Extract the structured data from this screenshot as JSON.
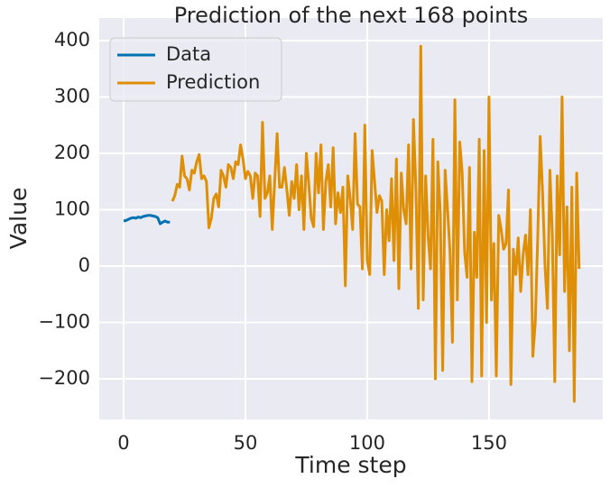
{
  "chart_data": {
    "type": "line",
    "title": "Prediction of the next 168 points",
    "xlabel": "Time step",
    "ylabel": "Value",
    "xlim": [
      -10,
      196.7
    ],
    "ylim": [
      -272,
      440
    ],
    "xticks": [
      0,
      50,
      100,
      150
    ],
    "yticks": [
      {
        "value": -200,
        "label": "−200"
      },
      {
        "value": -100,
        "label": "−100"
      },
      0,
      100,
      200,
      300,
      400
    ],
    "grid": true,
    "legend": "upper left",
    "series": [
      {
        "name": "Data",
        "color": "#0173b2",
        "x": [
          0,
          1,
          2,
          3,
          4,
          5,
          6,
          7,
          8,
          9,
          10,
          11,
          12,
          13,
          14,
          15,
          16,
          17,
          18,
          19
        ],
        "values": [
          80,
          81,
          83,
          85,
          86,
          85,
          87,
          86,
          88,
          89,
          90,
          90,
          89,
          88,
          86,
          75,
          78,
          80,
          78,
          78
        ]
      },
      {
        "name": "Prediction",
        "color": "#de8f05",
        "x": [
          20,
          21,
          22,
          23,
          24,
          25,
          26,
          27,
          28,
          29,
          30,
          31,
          32,
          33,
          34,
          35,
          36,
          37,
          38,
          39,
          40,
          41,
          42,
          43,
          44,
          45,
          46,
          47,
          48,
          49,
          50,
          51,
          52,
          53,
          54,
          55,
          56,
          57,
          58,
          59,
          60,
          61,
          62,
          63,
          64,
          65,
          66,
          67,
          68,
          69,
          70,
          71,
          72,
          73,
          74,
          75,
          76,
          77,
          78,
          79,
          80,
          81,
          82,
          83,
          84,
          85,
          86,
          87,
          88,
          89,
          90,
          91,
          92,
          93,
          94,
          95,
          96,
          97,
          98,
          99,
          100,
          101,
          102,
          103,
          104,
          105,
          106,
          107,
          108,
          109,
          110,
          111,
          112,
          113,
          114,
          115,
          116,
          117,
          118,
          119,
          120,
          121,
          122,
          123,
          124,
          125,
          126,
          127,
          128,
          129,
          130,
          131,
          132,
          133,
          134,
          135,
          136,
          137,
          138,
          139,
          140,
          141,
          142,
          143,
          144,
          145,
          146,
          147,
          148,
          149,
          150,
          151,
          152,
          153,
          154,
          155,
          156,
          157,
          158,
          159,
          160,
          161,
          162,
          163,
          164,
          165,
          166,
          167,
          168,
          169,
          170,
          171,
          172,
          173,
          174,
          175,
          176,
          177,
          178,
          179,
          180,
          181,
          182,
          183,
          184,
          185,
          186,
          187
        ],
        "values": [
          115,
          125,
          145,
          140,
          195,
          160,
          155,
          135,
          170,
          165,
          185,
          198,
          155,
          160,
          150,
          68,
          85,
          120,
          128,
          105,
          170,
          160,
          140,
          180,
          175,
          155,
          185,
          180,
          215,
          190,
          155,
          168,
          160,
          120,
          165,
          160,
          88,
          255,
          120,
          130,
          160,
          65,
          150,
          235,
          140,
          140,
          175,
          135,
          90,
          150,
          120,
          180,
          100,
          160,
          65,
          200,
          145,
          85,
          70,
          200,
          130,
          215,
          65,
          150,
          180,
          105,
          210,
          75,
          130,
          95,
          140,
          -35,
          160,
          120,
          65,
          235,
          110,
          105,
          -5,
          250,
          10,
          -15,
          205,
          150,
          95,
          125,
          115,
          -15,
          100,
          45,
          155,
          10,
          190,
          -40,
          165,
          100,
          75,
          215,
          -5,
          260,
          135,
          -75,
          390,
          -60,
          160,
          55,
          -5,
          225,
          -200,
          185,
          95,
          -185,
          170,
          100,
          25,
          -135,
          295,
          -60,
          220,
          165,
          25,
          -20,
          175,
          -205,
          60,
          -20,
          225,
          -195,
          205,
          -100,
          300,
          -60,
          40,
          -195,
          90,
          65,
          30,
          40,
          135,
          -210,
          30,
          -15,
          50,
          -45,
          20,
          55,
          -15,
          100,
          -160,
          -100,
          50,
          230,
          130,
          0,
          -75,
          170,
          55,
          -205,
          160,
          20,
          300,
          -45,
          105,
          -150,
          140,
          -240,
          165,
          -5
        ]
      }
    ]
  }
}
